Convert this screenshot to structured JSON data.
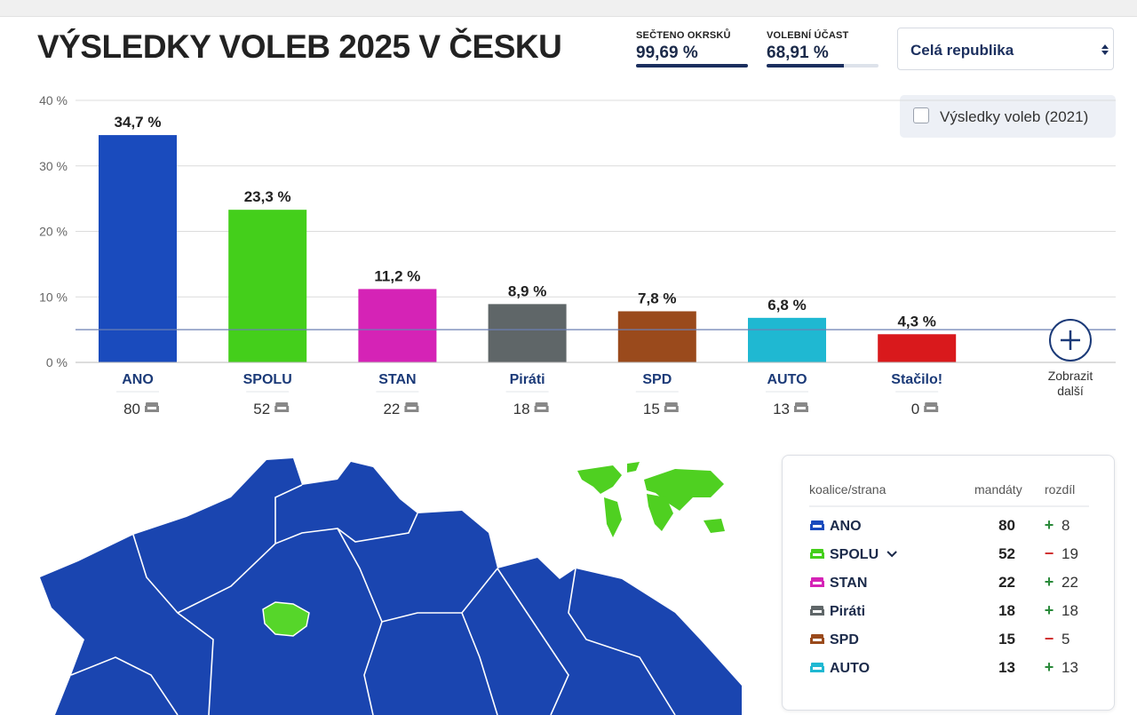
{
  "header": {
    "title": "VÝSLEDKY VOLEB 2025 V ČESKU",
    "stats": [
      {
        "label": "SEČTENO OKRSKŮ",
        "value": 99.69,
        "value_label": "99,69 %",
        "xlim": [
          0,
          100
        ]
      },
      {
        "label": "VOLEBNÍ ÚČAST",
        "value": 68.91,
        "value_label": "68,91 %",
        "xlim": [
          0,
          100
        ]
      }
    ],
    "region_select": "Celá republika",
    "compare_checkbox": "Výsledky voleb (2021)"
  },
  "chart_data": {
    "type": "bar",
    "categories": [
      "ANO",
      "SPOLU",
      "STAN",
      "Piráti",
      "SPD",
      "AUTO",
      "Stačilo!"
    ],
    "values": [
      34.7,
      23.3,
      11.2,
      8.9,
      7.8,
      6.8,
      4.3
    ],
    "value_labels": [
      "34,7 %",
      "23,3 %",
      "11,2 %",
      "8,9 %",
      "7,8 %",
      "6,8 %",
      "4,3 %"
    ],
    "colors": [
      "#1a4bbd",
      "#44cf1b",
      "#d523b6",
      "#5f6668",
      "#9a4a1c",
      "#1fb8d2",
      "#d9191c"
    ],
    "seats": [
      80,
      52,
      22,
      18,
      15,
      13,
      0
    ],
    "ylim": [
      0,
      40
    ],
    "yticks": [
      {
        "value": 0,
        "label": "0 %"
      },
      {
        "value": 10,
        "label": "10 %"
      },
      {
        "value": 20,
        "label": "20 %"
      },
      {
        "value": 30,
        "label": "30 %"
      },
      {
        "value": 40,
        "label": "40 %"
      }
    ],
    "grid": true,
    "threshold": 5,
    "more_button": "Zobrazit další"
  },
  "table": {
    "columns": [
      "koalice/strana",
      "mandáty",
      "rozdíl"
    ],
    "rows": [
      {
        "party": "ANO",
        "color": "#1a4bbd",
        "seats": 80,
        "change_sign": "+",
        "change": 8
      },
      {
        "party": "SPOLU",
        "color": "#44cf1b",
        "seats": 52,
        "change_sign": "−",
        "change": 19
      },
      {
        "party": "STAN",
        "color": "#d523b6",
        "seats": 22,
        "change_sign": "+",
        "change": 22
      },
      {
        "party": "Piráti",
        "color": "#5f6668",
        "seats": 18,
        "change_sign": "+",
        "change": 18
      },
      {
        "party": "SPD",
        "color": "#9a4a1c",
        "seats": 15,
        "change_sign": "−",
        "change": 5
      },
      {
        "party": "AUTO",
        "color": "#1fb8d2",
        "seats": 13,
        "change_sign": "+",
        "change": 13
      }
    ]
  }
}
